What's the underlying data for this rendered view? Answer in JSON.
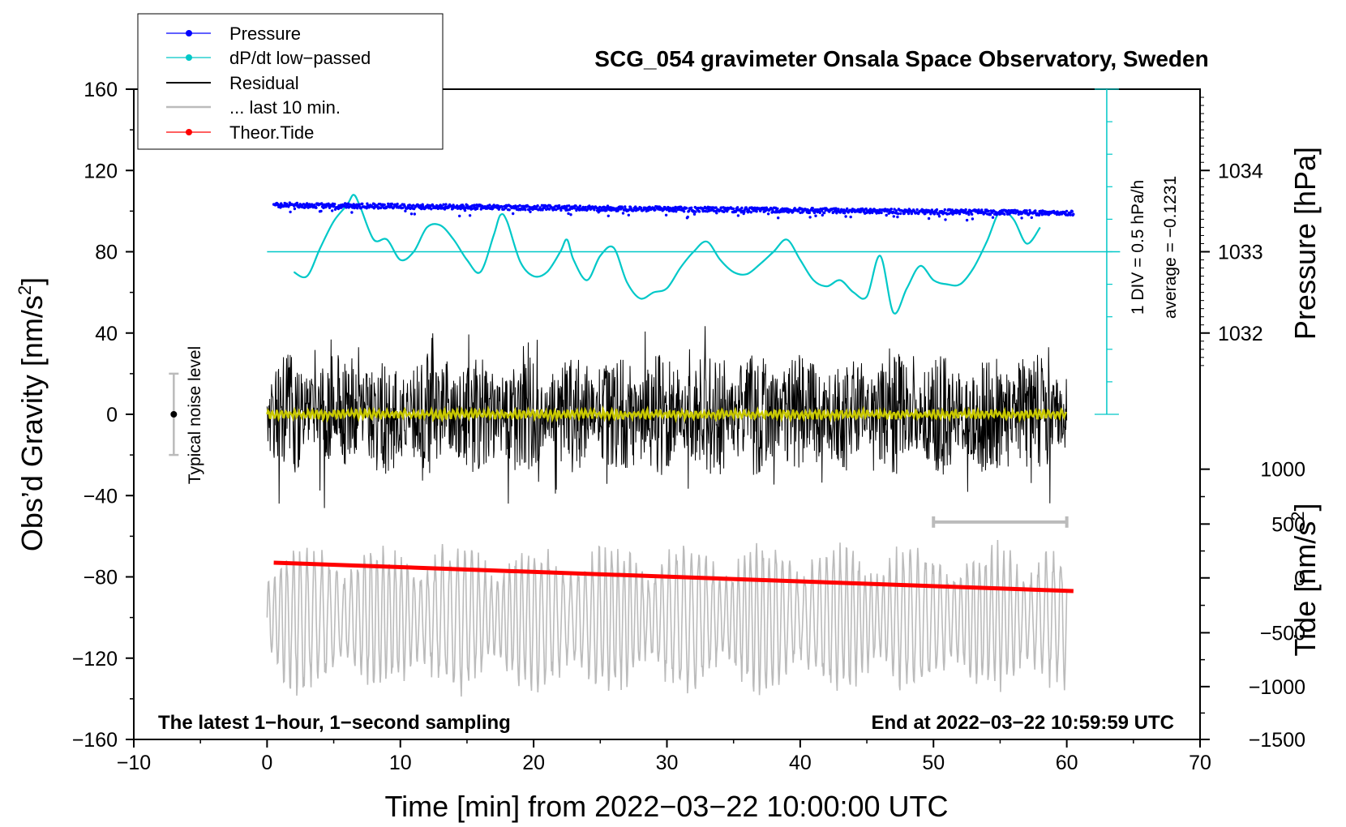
{
  "chart_data": {
    "type": "line",
    "title": "SCG_054 gravimeter Onsala Space Observatory, Sweden",
    "xlabel": "Time [min] from 2022−03−22 10:00:00 UTC",
    "ylabel": "Obs’d Gravity [nm/s",
    "ylabel_sup": "2",
    "ylabel_end": "]",
    "xlim": [
      -10,
      70
    ],
    "ylim": [
      -160,
      160
    ],
    "x_ticks": [
      -10,
      0,
      10,
      20,
      30,
      40,
      50,
      60,
      70
    ],
    "x_tick_labels": [
      "−10",
      "0",
      "10",
      "20",
      "30",
      "40",
      "50",
      "60",
      "70"
    ],
    "y_ticks": [
      160,
      120,
      80,
      40,
      0,
      -40,
      -80,
      -120,
      -160
    ],
    "y_tick_labels": [
      "160",
      "120",
      "80",
      "40",
      "0",
      "−40",
      "−80",
      "−120",
      "−160"
    ],
    "pressure_axis": {
      "label": "Pressure [hPa]",
      "ticks": [
        1034,
        1033,
        1032
      ],
      "tick_labels": [
        "1034",
        "1033",
        "1032"
      ],
      "gravity_at_tick": [
        120,
        80,
        40
      ]
    },
    "tide_axis": {
      "label": "Tide [nm/s",
      "label_sup": "2",
      "label_end": "]",
      "ticks": [
        1000,
        500,
        0,
        -500,
        -1000,
        -1500
      ],
      "tick_labels": [
        "1000",
        "500",
        "0",
        "−500",
        "−1000",
        "−1500"
      ],
      "gravity_at_tick": [
        -27,
        -54,
        -80.5,
        -107.5,
        -134,
        -160
      ]
    },
    "series": [
      {
        "name": "Pressure",
        "color": "#0000ff",
        "x_range": [
          0.5,
          60.5
        ],
        "y_start": 103,
        "y_end": 99,
        "scatter": 1.2
      },
      {
        "name": "dP/dt low−passed",
        "color": "#00c8c8",
        "x": [
          2,
          3,
          4,
          5,
          6,
          6.5,
          7,
          8,
          9,
          10,
          11,
          12,
          13,
          14,
          15,
          16,
          17,
          17.5,
          18,
          19,
          20,
          21,
          22,
          22.5,
          23,
          24,
          25,
          26,
          27,
          28,
          29,
          30,
          31,
          32,
          33,
          34,
          35,
          36,
          37,
          38,
          39,
          40,
          41,
          42,
          43,
          44,
          45,
          46,
          47,
          48,
          49,
          50,
          51,
          52,
          53,
          54,
          55,
          56,
          57,
          58
        ],
        "y": [
          70,
          68,
          82,
          95,
          103,
          108,
          102,
          86,
          86,
          76,
          80,
          92,
          93,
          86,
          76,
          70,
          88,
          98,
          95,
          75,
          68,
          70,
          80,
          86,
          76,
          66,
          78,
          82,
          65,
          57,
          60,
          62,
          72,
          80,
          85,
          76,
          70,
          69,
          74,
          80,
          86,
          76,
          66,
          63,
          66,
          60,
          58,
          78,
          50,
          62,
          73,
          66,
          64,
          64,
          72,
          85,
          100,
          96,
          84,
          92
        ]
      },
      {
        "name": "Residual",
        "color": "#000000",
        "x_range": [
          0,
          60
        ],
        "amplitude": 30
      },
      {
        "name": "... last 10 min.",
        "color": "#bbbbbb",
        "x_range": [
          0,
          60
        ],
        "center": -100,
        "amplitude": 28
      },
      {
        "name": "Theor.Tide",
        "color": "#ff0000",
        "x": [
          0.5,
          60.5
        ],
        "y": [
          -73,
          -87
        ]
      }
    ],
    "yellow_trace": {
      "color": "#c8c800",
      "x_range": [
        0,
        60
      ],
      "y_center": 0
    },
    "dpdt_reference": {
      "y": 80,
      "x_range": [
        0,
        64
      ],
      "scale_text": "1 DIV = 0.5 hPa/h",
      "average_text": "average = −0.1231",
      "scale_x": 63,
      "scale_y_range": [
        0,
        160
      ]
    },
    "noise_marker": {
      "x": -7,
      "y": 0,
      "y_range": [
        -20,
        20
      ],
      "label": "Typical noise level"
    },
    "last10_bracket": {
      "x_range": [
        50,
        60
      ],
      "y": -53
    },
    "legend": {
      "placement": "top-left",
      "entries": [
        "Pressure",
        "dP/dt low−passed",
        "Residual",
        "... last 10 min.",
        "Theor.Tide"
      ]
    },
    "annotations": {
      "bottom_left": "The latest 1−hour, 1−second sampling",
      "bottom_right": "End at 2022−03−22 10:59:59 UTC"
    }
  }
}
